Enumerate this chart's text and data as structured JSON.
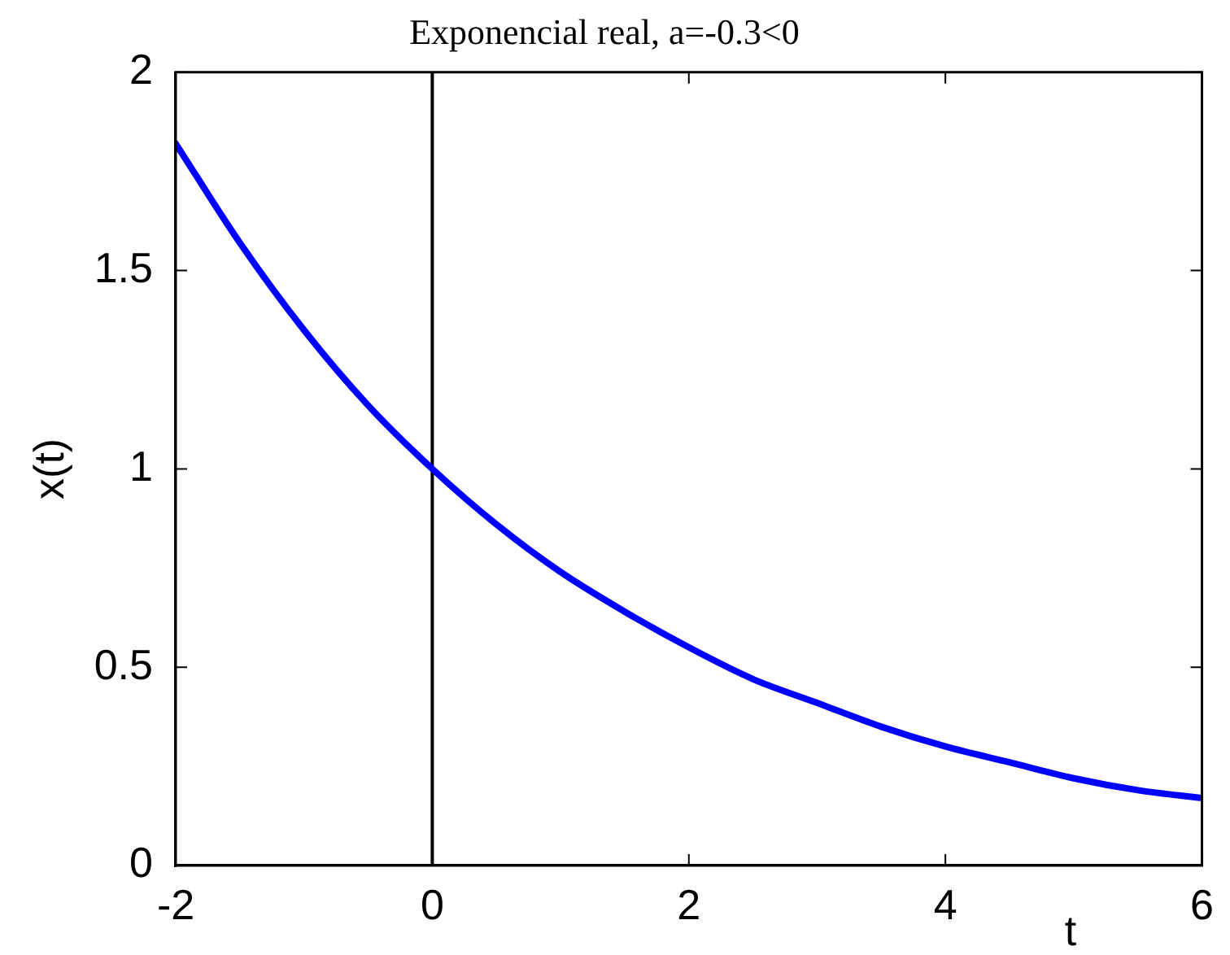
{
  "chart_data": {
    "type": "line",
    "title": "Exponencial real, a=-0.3<0",
    "xlabel": "t",
    "ylabel": "x(t)",
    "x": [
      -2,
      -1.5,
      -1,
      -0.5,
      0,
      0.5,
      1,
      1.5,
      2,
      2.5,
      3,
      3.5,
      4,
      4.5,
      5,
      5.5,
      6
    ],
    "series": [
      {
        "color": "#0000ff",
        "values": [
          1.82,
          1.57,
          1.35,
          1.16,
          1.0,
          0.86,
          0.74,
          0.64,
          0.55,
          0.47,
          0.41,
          0.35,
          0.3,
          0.26,
          0.22,
          0.19,
          0.17
        ]
      }
    ],
    "xlim": [
      -2,
      6
    ],
    "ylim": [
      0,
      2
    ],
    "xticks": [
      -2,
      0,
      2,
      4,
      6
    ],
    "yticks": [
      0,
      0.5,
      1,
      1.5,
      2
    ],
    "ref_lines": [
      {
        "axis": "x",
        "value": 0,
        "color": "#000000"
      }
    ],
    "line_style": "solid"
  }
}
